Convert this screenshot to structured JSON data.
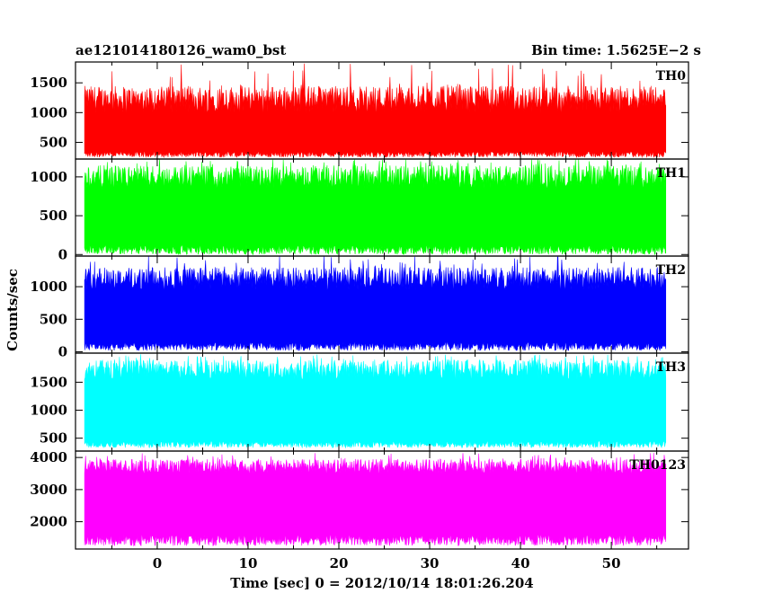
{
  "figure": {
    "title_left": "ae121014180126_wam0_bst",
    "title_right": "Bin time: 1.5625E−2 s",
    "ylabel": "Counts/sec",
    "xlabel": "Time [sec] 0 = 2012/10/14 18:01:26.204"
  },
  "chart_data": {
    "type": "line",
    "bin_time_s": 0.015625,
    "x_range": [
      -8.0,
      56.0
    ],
    "xlim": [
      -9.0,
      58.5
    ],
    "x_ticks": [
      0,
      10,
      20,
      30,
      40,
      50
    ],
    "grid": false,
    "legend": "none",
    "panels": [
      {
        "name": "TH0",
        "color": "#ff0000",
        "ylim": [
          220,
          1850
        ],
        "y_ticks": [
          500,
          1000,
          1500
        ],
        "baseline_range": [
          250,
          350
        ],
        "typical_peak_range": [
          1000,
          1450
        ],
        "max_spike": 1850
      },
      {
        "name": "TH1",
        "color": "#00ff00",
        "ylim": [
          -20,
          1230
        ],
        "y_ticks": [
          0,
          500,
          1000
        ],
        "baseline_range": [
          0,
          120
        ],
        "typical_peak_range": [
          850,
          1150
        ],
        "max_spike": 1230
      },
      {
        "name": "TH2",
        "color": "#0000ff",
        "ylim": [
          -20,
          1470
        ],
        "y_ticks": [
          0,
          500,
          1000
        ],
        "baseline_range": [
          20,
          150
        ],
        "typical_peak_range": [
          950,
          1300
        ],
        "max_spike": 1470
      },
      {
        "name": "TH3",
        "color": "#00ffff",
        "ylim": [
          270,
          2020
        ],
        "y_ticks": [
          500,
          1000,
          1500
        ],
        "baseline_range": [
          330,
          450
        ],
        "typical_peak_range": [
          1550,
          1900
        ],
        "max_spike": 2000
      },
      {
        "name": "TH0123",
        "color": "#ff00ff",
        "ylim": [
          1150,
          4200
        ],
        "y_ticks": [
          2000,
          3000,
          4000
        ],
        "baseline_range": [
          1250,
          1600
        ],
        "typical_peak_range": [
          3500,
          3950
        ],
        "max_spike": 4150
      }
    ]
  }
}
